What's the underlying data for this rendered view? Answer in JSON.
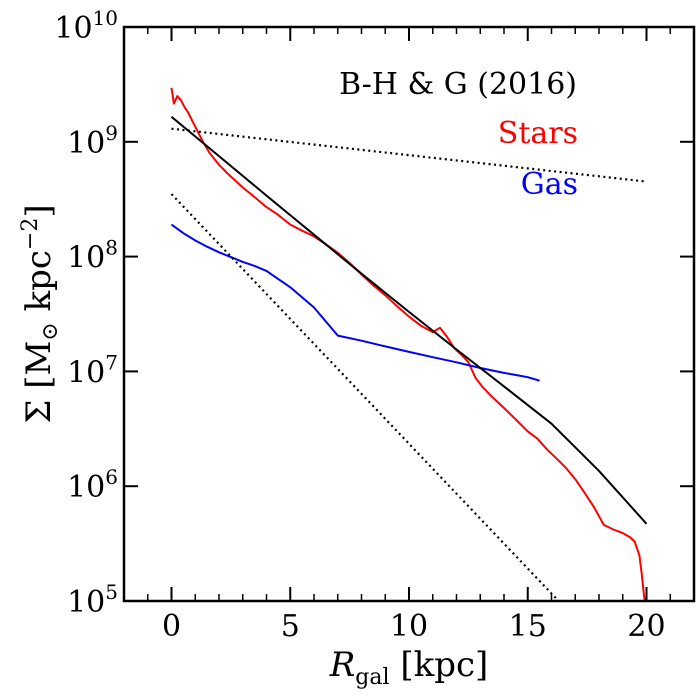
{
  "chart_data": {
    "type": "line",
    "xlabel": {
      "main": "R",
      "sub": "gal",
      "rest": " [kpc]"
    },
    "ylabel": {
      "main": "Σ [M",
      "sub": "⊙",
      "mid": " kpc",
      "sup": "−2",
      "end": "]"
    },
    "xlim": [
      -2,
      22
    ],
    "ylim": [
      100000,
      10000000000
    ],
    "yscale": "log",
    "x_ticks": [
      0,
      5,
      10,
      15,
      20
    ],
    "x_tick_labels": [
      "0",
      "5",
      "10",
      "15",
      "20"
    ],
    "y_ticks": [
      100000,
      1000000,
      10000000,
      100000000,
      1000000000,
      10000000000
    ],
    "y_tick_labels": [
      {
        "base": "10",
        "exp": "5"
      },
      {
        "base": "10",
        "exp": "6"
      },
      {
        "base": "10",
        "exp": "7"
      },
      {
        "base": "10",
        "exp": "8"
      },
      {
        "base": "10",
        "exp": "9"
      },
      {
        "base": "10",
        "exp": "10"
      }
    ],
    "grid": false,
    "annotations": [
      {
        "text": "B-H & G (2016)",
        "color": "#000000"
      },
      {
        "text": "Stars",
        "color": "#ff0000"
      },
      {
        "text": "Gas",
        "color": "#0000ff"
      }
    ],
    "series": [
      {
        "id": "stars",
        "color": "#ff0000",
        "style": "solid",
        "x": [
          0.0,
          0.1,
          0.25,
          0.4,
          0.55,
          0.7,
          1.0,
          1.3,
          1.6,
          2.0,
          2.4,
          3.0,
          3.5,
          4.0,
          4.5,
          5.0,
          5.5,
          6.0,
          6.5,
          7.0,
          7.5,
          8.0,
          8.5,
          9.0,
          9.5,
          10.0,
          10.5,
          11.0,
          11.3,
          11.6,
          11.9,
          12.2,
          12.5,
          12.8,
          13.1,
          13.5,
          14.0,
          14.5,
          15.0,
          15.4,
          15.8,
          16.2,
          16.6,
          17.0,
          17.4,
          17.8,
          18.2,
          18.6,
          19.0,
          19.3,
          19.5,
          19.7,
          19.8,
          19.9,
          20.0
        ],
        "y": [
          2950000000,
          2150000000,
          2500000000,
          2300000000,
          2000000000,
          1800000000,
          1350000000,
          1020000000,
          800000000,
          630000000,
          520000000,
          400000000,
          330000000,
          270000000,
          230000000,
          190000000,
          168000000,
          150000000,
          128000000,
          108000000,
          88000000,
          70000000,
          56000000,
          46000000,
          37000000,
          30000000,
          25000000,
          22000000,
          24000000,
          20000000,
          16000000,
          14000000,
          12000000,
          8800000,
          7300000,
          6000000,
          4800000,
          3800000,
          3000000,
          2600000,
          2100000,
          1750000,
          1450000,
          1150000,
          870000,
          650000,
          460000,
          420000,
          390000,
          360000,
          330000,
          250000,
          170000,
          110000,
          80000
        ]
      },
      {
        "id": "gas",
        "color": "#0000ff",
        "style": "solid",
        "x": [
          0.0,
          0.5,
          1.0,
          1.5,
          2.0,
          2.5,
          3.0,
          3.5,
          4.0,
          5.0,
          6.0,
          7.0,
          8.0,
          9.0,
          10.0,
          11.0,
          12.0,
          13.0,
          14.0,
          14.5,
          15.0,
          15.5
        ],
        "y": [
          190000000,
          160000000,
          138000000,
          122000000,
          109000000,
          99000000,
          90000000,
          83000000,
          75000000,
          54000000,
          36000000,
          20500000,
          18500000,
          16500000,
          14800000,
          13300000,
          12000000,
          10700000,
          9700000,
          9300000,
          8900000,
          8300000
        ]
      },
      {
        "id": "fit-total",
        "color": "#000000",
        "style": "solid",
        "x": [
          0,
          2,
          4,
          6,
          8,
          10,
          12,
          14,
          16,
          18,
          20
        ],
        "y": [
          1650000000,
          750000000,
          340000000,
          155000000,
          71000000,
          33000000,
          15500000,
          7400000,
          3500000,
          1360000,
          470000
        ]
      },
      {
        "id": "fit-outer-disk",
        "color": "#000000",
        "style": "dotted",
        "x": [
          0,
          20
        ],
        "y": [
          1300000000,
          450000000
        ]
      },
      {
        "id": "fit-inner-disk",
        "color": "#000000",
        "style": "dotted",
        "x": [
          0,
          16.3
        ],
        "y": [
          350000000,
          100000
        ]
      }
    ]
  }
}
